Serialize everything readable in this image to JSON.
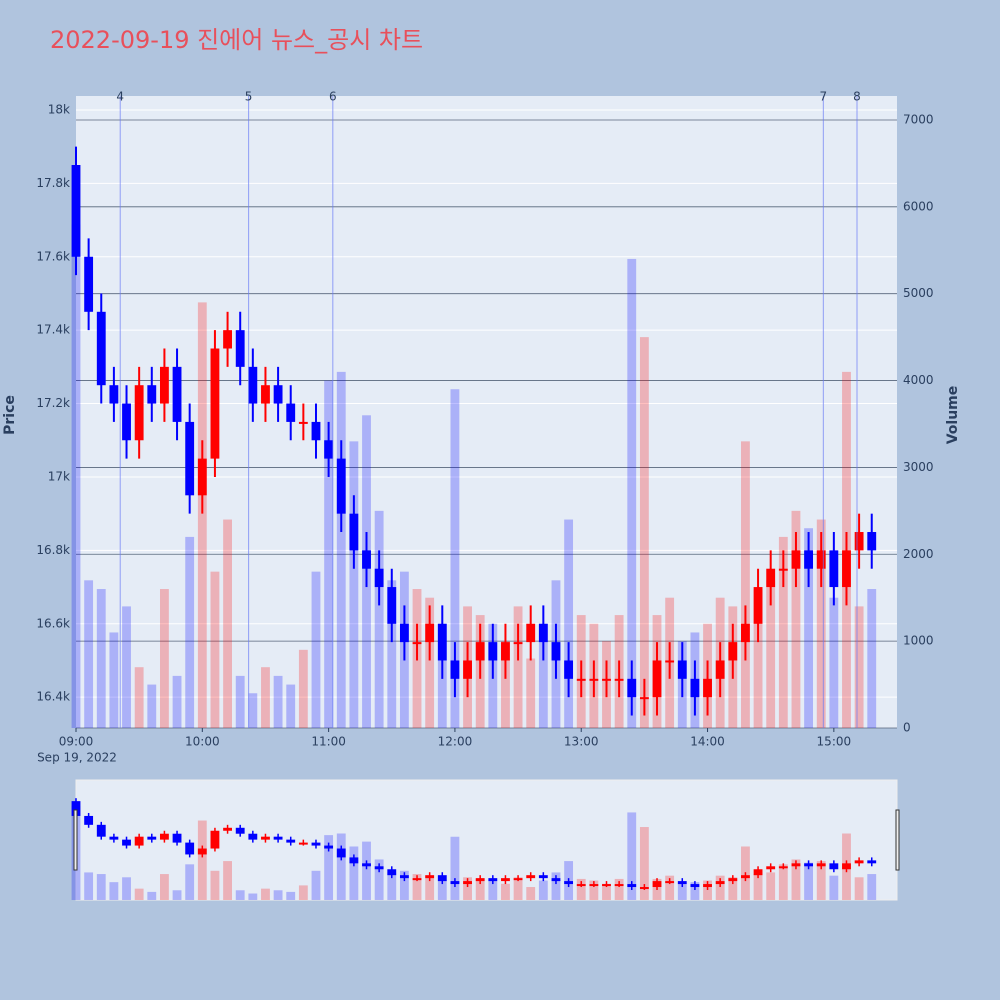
{
  "chart_data": {
    "type": "candlestick",
    "title": "2022-09-19 진에어 뉴스_공시 차트",
    "y_label": "Price",
    "y2_label": "Volume",
    "x_date_label": "Sep 19, 2022",
    "xlim": [
      "09:00",
      "15:30"
    ],
    "xticks": [
      "09:00",
      "10:00",
      "11:00",
      "12:00",
      "13:00",
      "14:00",
      "15:00"
    ],
    "ylim": [
      16316,
      18038
    ],
    "yticks": [
      {
        "value": 16400,
        "label": "16.4k"
      },
      {
        "value": 16600,
        "label": "16.6k"
      },
      {
        "value": 16800,
        "label": "16.8k"
      },
      {
        "value": 17000,
        "label": "17k"
      },
      {
        "value": 17200,
        "label": "17.2k"
      },
      {
        "value": 17400,
        "label": "17.4k"
      },
      {
        "value": 17600,
        "label": "17.6k"
      },
      {
        "value": 17800,
        "label": "17.8k"
      },
      {
        "value": 18000,
        "label": "18k"
      }
    ],
    "y2lim": [
      0,
      7276
    ],
    "y2ticks": [
      0,
      1000,
      2000,
      3000,
      4000,
      5000,
      6000,
      7000
    ],
    "increasing_color": "#ff0000",
    "decreasing_color": "#0000ff",
    "grid": true,
    "rangeslider": true,
    "x": [
      "09:00",
      "09:06",
      "09:12",
      "09:18",
      "09:24",
      "09:30",
      "09:36",
      "09:42",
      "09:48",
      "09:54",
      "10:00",
      "10:06",
      "10:12",
      "10:18",
      "10:24",
      "10:30",
      "10:36",
      "10:42",
      "10:48",
      "10:54",
      "11:00",
      "11:06",
      "11:12",
      "11:18",
      "11:24",
      "11:30",
      "11:36",
      "11:42",
      "11:48",
      "11:54",
      "12:00",
      "12:06",
      "12:12",
      "12:18",
      "12:24",
      "12:30",
      "12:36",
      "12:42",
      "12:48",
      "12:54",
      "13:00",
      "13:06",
      "13:12",
      "13:18",
      "13:24",
      "13:30",
      "13:36",
      "13:42",
      "13:48",
      "13:54",
      "14:00",
      "14:06",
      "14:12",
      "14:18",
      "14:24",
      "14:30",
      "14:36",
      "14:42",
      "14:48",
      "14:54",
      "15:00",
      "15:06",
      "15:12",
      "15:18"
    ],
    "open": [
      17850,
      17600,
      17450,
      17250,
      17200,
      17100,
      17250,
      17200,
      17300,
      17150,
      16950,
      17050,
      17350,
      17400,
      17300,
      17200,
      17250,
      17200,
      17150,
      17150,
      17100,
      17050,
      16900,
      16800,
      16750,
      16700,
      16600,
      16550,
      16550,
      16600,
      16500,
      16450,
      16500,
      16550,
      16500,
      16550,
      16550,
      16600,
      16550,
      16500,
      16450,
      16450,
      16450,
      16450,
      16450,
      16400,
      16400,
      16500,
      16500,
      16450,
      16400,
      16450,
      16500,
      16550,
      16600,
      16700,
      16750,
      16750,
      16800,
      16750,
      16800,
      16700,
      16800,
      16850
    ],
    "high": [
      17900,
      17650,
      17500,
      17300,
      17250,
      17300,
      17300,
      17350,
      17350,
      17200,
      17100,
      17400,
      17450,
      17450,
      17350,
      17300,
      17300,
      17250,
      17200,
      17200,
      17150,
      17100,
      16950,
      16850,
      16800,
      16750,
      16650,
      16600,
      16650,
      16650,
      16550,
      16550,
      16600,
      16600,
      16600,
      16600,
      16650,
      16650,
      16600,
      16550,
      16500,
      16500,
      16500,
      16500,
      16500,
      16450,
      16550,
      16550,
      16550,
      16500,
      16500,
      16550,
      16600,
      16650,
      16750,
      16800,
      16800,
      16850,
      16850,
      16850,
      16850,
      16850,
      16900,
      16900
    ],
    "low": [
      17550,
      17400,
      17200,
      17150,
      17050,
      17050,
      17150,
      17150,
      17100,
      16900,
      16900,
      17000,
      17300,
      17250,
      17150,
      17150,
      17150,
      17100,
      17100,
      17050,
      17000,
      16850,
      16750,
      16700,
      16650,
      16550,
      16500,
      16500,
      16500,
      16450,
      16400,
      16400,
      16450,
      16450,
      16450,
      16500,
      16500,
      16500,
      16450,
      16400,
      16400,
      16400,
      16400,
      16400,
      16350,
      16350,
      16350,
      16450,
      16400,
      16350,
      16350,
      16400,
      16450,
      16500,
      16550,
      16650,
      16700,
      16700,
      16700,
      16700,
      16650,
      16650,
      16750,
      16750
    ],
    "close": [
      17600,
      17450,
      17250,
      17200,
      17100,
      17250,
      17200,
      17300,
      17150,
      16950,
      17050,
      17350,
      17400,
      17300,
      17200,
      17250,
      17200,
      17150,
      17150,
      17100,
      17050,
      16900,
      16800,
      16750,
      16700,
      16600,
      16550,
      16550,
      16600,
      16500,
      16450,
      16500,
      16550,
      16500,
      16550,
      16550,
      16600,
      16550,
      16500,
      16450,
      16450,
      16450,
      16450,
      16450,
      16400,
      16400,
      16500,
      16500,
      16450,
      16400,
      16450,
      16500,
      16550,
      16600,
      16700,
      16750,
      16750,
      16800,
      16750,
      16800,
      16700,
      16800,
      16850,
      16800
    ],
    "volume": [
      5800,
      1700,
      1600,
      1100,
      1400,
      700,
      500,
      1600,
      600,
      2200,
      4900,
      1800,
      2400,
      600,
      400,
      700,
      600,
      500,
      900,
      1800,
      4000,
      4100,
      3300,
      3600,
      2500,
      1700,
      1800,
      1600,
      1500,
      1200,
      3900,
      1400,
      1300,
      1200,
      1000,
      1400,
      800,
      1200,
      1700,
      2400,
      1300,
      1200,
      1000,
      1300,
      5400,
      4500,
      1300,
      1500,
      1000,
      1100,
      1200,
      1500,
      1400,
      3300,
      1600,
      1700,
      2200,
      2500,
      2300,
      2400,
      1500,
      4100,
      1400,
      1600
    ],
    "annotations": [
      {
        "x": "09:21",
        "text": "4"
      },
      {
        "x": "10:22",
        "text": "5"
      },
      {
        "x": "11:02",
        "text": "6"
      },
      {
        "x": "14:55",
        "text": "7"
      },
      {
        "x": "15:11",
        "text": "8"
      }
    ]
  }
}
